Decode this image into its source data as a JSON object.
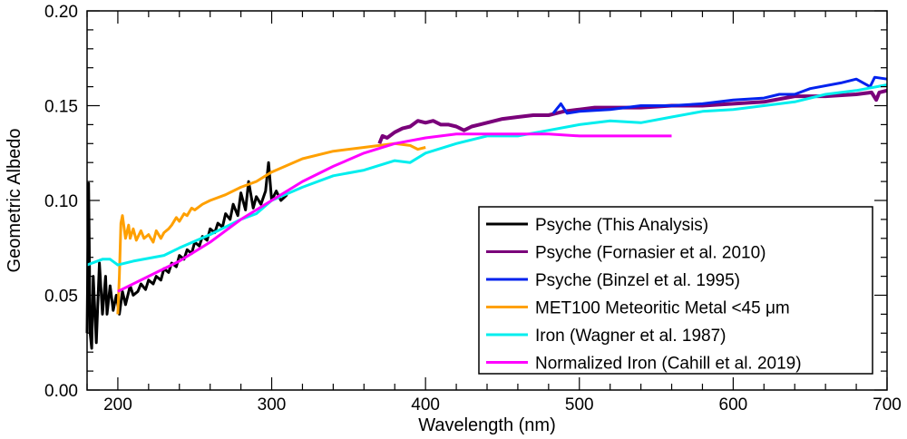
{
  "chart_data": {
    "type": "line",
    "title": "",
    "xlabel": "Wavelength (nm)",
    "ylabel": "Geometric Albedo",
    "xlim": [
      180,
      700
    ],
    "ylim": [
      0,
      0.2
    ],
    "xticks": [
      "200",
      "300",
      "400",
      "500",
      "600",
      "700"
    ],
    "yticks": [
      "0.00",
      "0.05",
      "0.10",
      "0.15",
      "0.20"
    ],
    "grid": false,
    "legend_position": "lower-right",
    "series": [
      {
        "name": "Psyche (This Analysis)",
        "color": "#000000",
        "x": [
          180,
          181,
          182,
          183,
          184,
          186,
          188,
          190,
          192,
          193,
          195,
          197,
          199,
          201,
          203,
          205,
          208,
          210,
          213,
          215,
          218,
          220,
          223,
          225,
          228,
          230,
          233,
          235,
          238,
          240,
          243,
          245,
          248,
          250,
          253,
          255,
          258,
          260,
          263,
          265,
          268,
          270,
          273,
          275,
          278,
          280,
          283,
          285,
          288,
          290,
          293,
          296,
          298,
          300,
          303,
          306,
          310
        ],
        "y": [
          0.03,
          0.109,
          0.03,
          0.022,
          0.06,
          0.025,
          0.067,
          0.04,
          0.06,
          0.04,
          0.055,
          0.042,
          0.05,
          0.04,
          0.052,
          0.045,
          0.055,
          0.05,
          0.052,
          0.056,
          0.053,
          0.058,
          0.056,
          0.06,
          0.058,
          0.064,
          0.062,
          0.067,
          0.065,
          0.071,
          0.069,
          0.074,
          0.072,
          0.078,
          0.076,
          0.081,
          0.079,
          0.085,
          0.083,
          0.088,
          0.086,
          0.093,
          0.09,
          0.098,
          0.092,
          0.104,
          0.095,
          0.11,
          0.096,
          0.102,
          0.098,
          0.105,
          0.12,
          0.1,
          0.105,
          0.1,
          0.103
        ]
      },
      {
        "name": "Psyche (Fornasier et al. 2010)",
        "color": "#7a007a",
        "x": [
          370,
          372,
          375,
          380,
          385,
          390,
          395,
          400,
          405,
          410,
          415,
          420,
          425,
          430,
          435,
          440,
          450,
          460,
          470,
          480,
          490,
          500,
          510,
          520,
          540,
          560,
          580,
          600,
          620,
          640,
          660,
          680,
          690,
          693,
          695,
          700
        ],
        "y": [
          0.13,
          0.134,
          0.133,
          0.136,
          0.138,
          0.139,
          0.142,
          0.141,
          0.142,
          0.14,
          0.14,
          0.139,
          0.137,
          0.139,
          0.14,
          0.141,
          0.143,
          0.144,
          0.145,
          0.145,
          0.147,
          0.148,
          0.149,
          0.149,
          0.149,
          0.15,
          0.15,
          0.151,
          0.152,
          0.155,
          0.155,
          0.156,
          0.157,
          0.153,
          0.157,
          0.158
        ]
      },
      {
        "name": "Psyche (Binzel et al. 1995)",
        "color": "#0022ee",
        "x": [
          483,
          488,
          492,
          500,
          520,
          540,
          560,
          580,
          600,
          620,
          630,
          640,
          650,
          670,
          680,
          689,
          692,
          700
        ],
        "y": [
          0.146,
          0.151,
          0.146,
          0.147,
          0.148,
          0.15,
          0.15,
          0.151,
          0.153,
          0.154,
          0.156,
          0.156,
          0.159,
          0.162,
          0.164,
          0.16,
          0.165,
          0.164
        ]
      },
      {
        "name": "MET100 Meteoritic Metal <45 μm",
        "color": "#ffa000",
        "x": [
          200,
          201,
          202,
          203,
          205,
          207,
          208,
          210,
          212,
          215,
          217,
          220,
          223,
          225,
          228,
          230,
          233,
          235,
          238,
          240,
          243,
          245,
          248,
          250,
          255,
          260,
          270,
          280,
          290,
          300,
          320,
          340,
          360,
          380,
          390,
          395,
          400
        ],
        "y": [
          0.04,
          0.06,
          0.088,
          0.092,
          0.08,
          0.087,
          0.08,
          0.085,
          0.079,
          0.084,
          0.08,
          0.082,
          0.078,
          0.084,
          0.08,
          0.083,
          0.085,
          0.087,
          0.091,
          0.089,
          0.093,
          0.092,
          0.096,
          0.095,
          0.098,
          0.1,
          0.103,
          0.107,
          0.11,
          0.115,
          0.122,
          0.126,
          0.128,
          0.13,
          0.129,
          0.127,
          0.128
        ]
      },
      {
        "name": "Iron (Wagner et al. 1987)",
        "color": "#00eeee",
        "x": [
          180,
          190,
          195,
          200,
          210,
          230,
          240,
          260,
          280,
          290,
          300,
          320,
          340,
          360,
          380,
          390,
          400,
          420,
          440,
          460,
          480,
          500,
          520,
          540,
          560,
          580,
          600,
          620,
          640,
          660,
          680,
          700
        ],
        "y": [
          0.066,
          0.069,
          0.069,
          0.066,
          0.068,
          0.071,
          0.075,
          0.082,
          0.09,
          0.093,
          0.1,
          0.107,
          0.113,
          0.116,
          0.121,
          0.12,
          0.125,
          0.13,
          0.134,
          0.134,
          0.137,
          0.14,
          0.142,
          0.141,
          0.144,
          0.147,
          0.148,
          0.15,
          0.152,
          0.156,
          0.158,
          0.161
        ]
      },
      {
        "name": "Normalized Iron (Cahill et al. 2019)",
        "color": "#ff00ff",
        "x": [
          200,
          220,
          240,
          260,
          280,
          300,
          320,
          340,
          360,
          380,
          400,
          420,
          440,
          460,
          480,
          500,
          520,
          540,
          560
        ],
        "y": [
          0.052,
          0.06,
          0.068,
          0.078,
          0.09,
          0.1,
          0.11,
          0.118,
          0.125,
          0.13,
          0.133,
          0.135,
          0.135,
          0.135,
          0.135,
          0.134,
          0.134,
          0.134,
          0.134
        ]
      }
    ]
  }
}
